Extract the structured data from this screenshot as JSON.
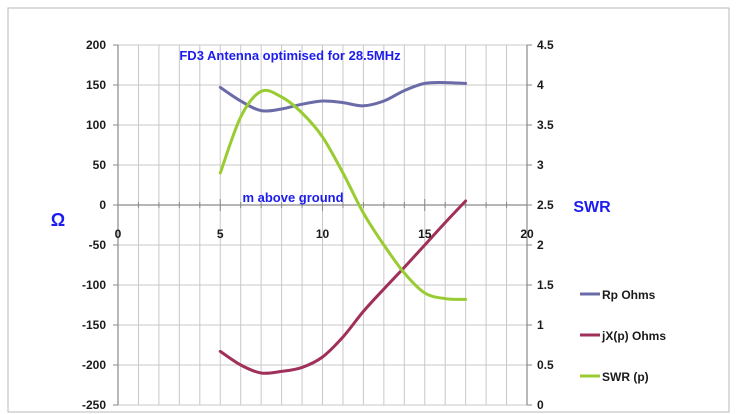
{
  "chart_data": {
    "type": "line",
    "title": "FD3 Antenna optimised for 28.5MHz",
    "xlabel": "m above ground",
    "ylabel": "Ω",
    "y2label": "SWR",
    "xlim": [
      0,
      20
    ],
    "ylim": [
      -250,
      200
    ],
    "y2lim": [
      0,
      4.5
    ],
    "x_ticks": [
      "0",
      "5",
      "10",
      "15",
      "20"
    ],
    "y_ticks": [
      "200",
      "150",
      "100",
      "50",
      "0",
      "-50",
      "-100",
      "-150",
      "-200",
      "-250"
    ],
    "y2_ticks": [
      "4.5",
      "4",
      "3.5",
      "3",
      "2.5",
      "2",
      "1.5",
      "1",
      "0.5",
      "0"
    ],
    "grid": true,
    "legend_position": "right",
    "series": [
      {
        "name": "Rp Ohms",
        "axis": "left",
        "color": "#6b6ba8",
        "x": [
          5,
          6,
          7,
          8,
          9,
          10,
          11,
          12,
          13,
          14,
          15,
          16,
          17
        ],
        "values": [
          147,
          130,
          118,
          120,
          126,
          130,
          128,
          124,
          130,
          143,
          152,
          153,
          152
        ]
      },
      {
        "name": "jX(p) Ohms",
        "axis": "left",
        "color": "#a0305a",
        "x": [
          5,
          6,
          7,
          8,
          9,
          10,
          11,
          12,
          13,
          14,
          15,
          16,
          17
        ],
        "values": [
          -183,
          -200,
          -210,
          -208,
          -203,
          -190,
          -165,
          -133,
          -105,
          -78,
          -50,
          -22,
          5
        ]
      },
      {
        "name": "SWR (p)",
        "axis": "right",
        "color": "#99cc33",
        "x": [
          5,
          6,
          7,
          8,
          9,
          10,
          11,
          12,
          13,
          14,
          15,
          16,
          17
        ],
        "values": [
          2.9,
          3.6,
          3.92,
          3.85,
          3.65,
          3.35,
          2.9,
          2.4,
          2.0,
          1.65,
          1.4,
          1.33,
          1.32
        ]
      }
    ]
  }
}
